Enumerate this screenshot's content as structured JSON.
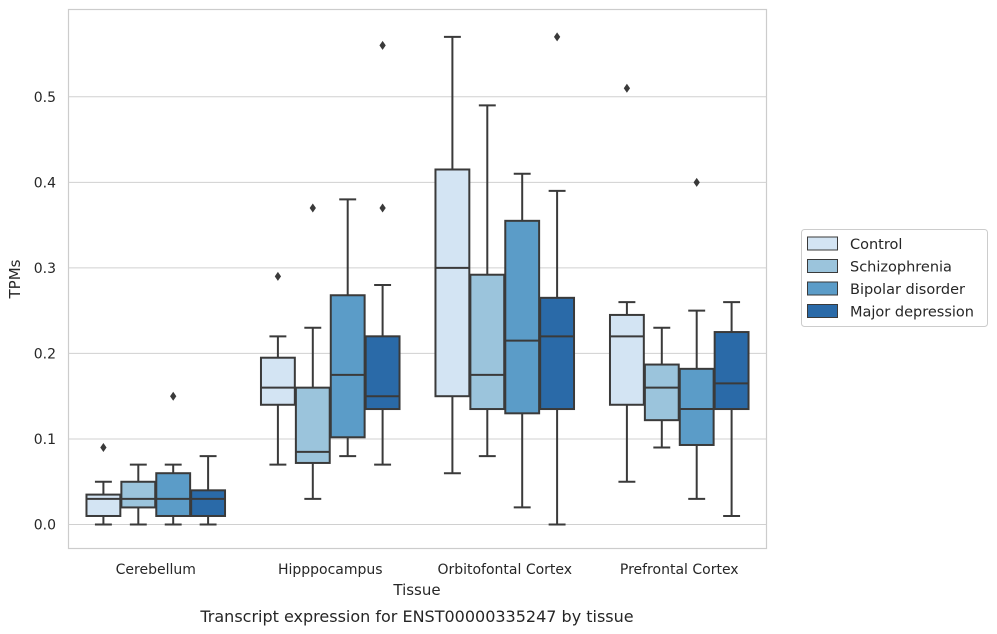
{
  "caption": "Transcript expression for ENST00000335247 by tissue",
  "chart_data": {
    "type": "box",
    "xlabel": "Tissue",
    "ylabel": "TPMs",
    "ylim": [
      -0.028,
      0.602
    ],
    "yticks": [
      0.0,
      0.1,
      0.2,
      0.3,
      0.4,
      0.5
    ],
    "ytick_labels": [
      "0.0",
      "0.1",
      "0.2",
      "0.3",
      "0.4",
      "0.5"
    ],
    "grid": "horizontal",
    "legend_position": "right",
    "categories": [
      "Cerebellum",
      "Hipppocampus",
      "Orbitofontal Cortex",
      "Prefrontal Cortex"
    ],
    "series": [
      {
        "name": "Control",
        "color": "#d3e4f3",
        "boxes": [
          {
            "whislo": 0.0,
            "q1": 0.01,
            "med": 0.03,
            "q3": 0.035,
            "whishi": 0.05,
            "fliers": [
              0.09
            ]
          },
          {
            "whislo": 0.07,
            "q1": 0.14,
            "med": 0.16,
            "q3": 0.195,
            "whishi": 0.22,
            "fliers": [
              0.29
            ]
          },
          {
            "whislo": 0.06,
            "q1": 0.15,
            "med": 0.3,
            "q3": 0.415,
            "whishi": 0.57,
            "fliers": []
          },
          {
            "whislo": 0.05,
            "q1": 0.14,
            "med": 0.22,
            "q3": 0.245,
            "whishi": 0.26,
            "fliers": [
              0.51
            ]
          }
        ]
      },
      {
        "name": "Schizophrenia",
        "color": "#9bc4dc",
        "boxes": [
          {
            "whislo": 0.0,
            "q1": 0.02,
            "med": 0.03,
            "q3": 0.05,
            "whishi": 0.07,
            "fliers": []
          },
          {
            "whislo": 0.03,
            "q1": 0.072,
            "med": 0.085,
            "q3": 0.16,
            "whishi": 0.23,
            "fliers": [
              0.37
            ]
          },
          {
            "whislo": 0.08,
            "q1": 0.135,
            "med": 0.175,
            "q3": 0.292,
            "whishi": 0.49,
            "fliers": []
          },
          {
            "whislo": 0.09,
            "q1": 0.122,
            "med": 0.16,
            "q3": 0.187,
            "whishi": 0.23,
            "fliers": []
          }
        ]
      },
      {
        "name": "Bipolar disorder",
        "color": "#5b9cc8",
        "boxes": [
          {
            "whislo": 0.0,
            "q1": 0.01,
            "med": 0.03,
            "q3": 0.06,
            "whishi": 0.07,
            "fliers": [
              0.15
            ]
          },
          {
            "whislo": 0.08,
            "q1": 0.102,
            "med": 0.175,
            "q3": 0.268,
            "whishi": 0.38,
            "fliers": []
          },
          {
            "whislo": 0.02,
            "q1": 0.13,
            "med": 0.215,
            "q3": 0.355,
            "whishi": 0.41,
            "fliers": []
          },
          {
            "whislo": 0.03,
            "q1": 0.093,
            "med": 0.135,
            "q3": 0.182,
            "whishi": 0.25,
            "fliers": [
              0.4
            ]
          }
        ]
      },
      {
        "name": "Major depression",
        "color": "#2a6aa8",
        "boxes": [
          {
            "whislo": 0.0,
            "q1": 0.01,
            "med": 0.03,
            "q3": 0.04,
            "whishi": 0.08,
            "fliers": []
          },
          {
            "whislo": 0.07,
            "q1": 0.135,
            "med": 0.15,
            "q3": 0.22,
            "whishi": 0.28,
            "fliers": [
              0.37,
              0.56
            ]
          },
          {
            "whislo": 0.0,
            "q1": 0.135,
            "med": 0.22,
            "q3": 0.265,
            "whishi": 0.39,
            "fliers": [
              0.57
            ]
          },
          {
            "whislo": 0.01,
            "q1": 0.135,
            "med": 0.165,
            "q3": 0.225,
            "whishi": 0.26,
            "fliers": []
          }
        ]
      }
    ]
  }
}
